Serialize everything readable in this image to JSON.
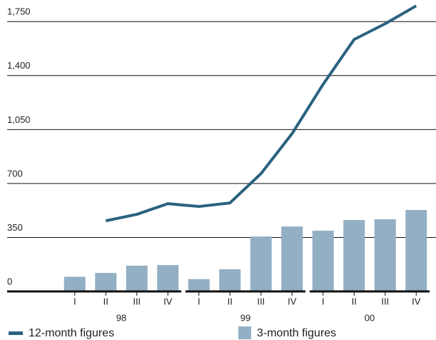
{
  "chart_data": {
    "type": "bar-line",
    "categories": [
      "I",
      "II",
      "III",
      "IV",
      "I",
      "II",
      "III",
      "IV",
      "I",
      "II",
      "III",
      "IV"
    ],
    "groups": [
      "98",
      "99",
      "00"
    ],
    "series": [
      {
        "name": "3-month figures",
        "type": "bar",
        "color": "#93afc4",
        "values": [
          95,
          120,
          167,
          171,
          80,
          144,
          356,
          421,
          394,
          463,
          468,
          528
        ]
      },
      {
        "name": "12-month figures",
        "type": "line",
        "color": "#2a627f",
        "values": [
          null,
          458,
          500,
          569,
          551,
          574,
          764,
          1023,
          1343,
          1634,
          1736,
          1852
        ]
      }
    ],
    "ylim": [
      0,
      1890
    ],
    "yticks": [
      0,
      350,
      700,
      {
        "value": 1050,
        "label": "1,050"
      },
      {
        "value": 1400,
        "label": "1,400"
      },
      {
        "value": 1750,
        "label": "1,750"
      }
    ],
    "grid": true
  }
}
